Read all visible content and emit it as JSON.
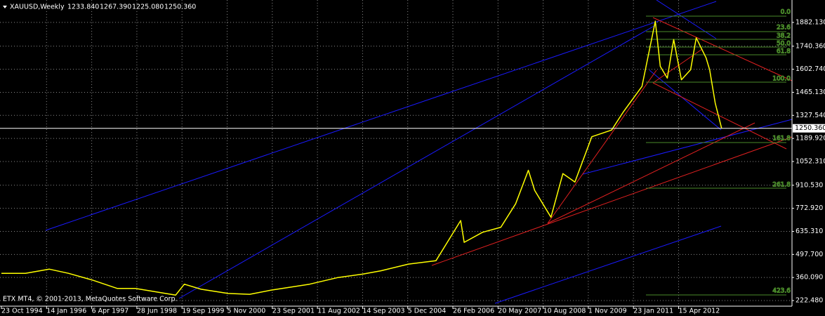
{
  "chart_data": {
    "type": "line",
    "title": "XAUUSD,Weekly",
    "ohlc_labels": [
      "1233.840",
      "1267.390",
      "1225.080",
      "1250.360"
    ],
    "watermark": "ETX MT4, © 2001-2013, MetaQuotes Software Corp.",
    "last_price": {
      "value": 1250.36,
      "label": "1250.360"
    },
    "fibo_labels": [
      "0.0",
      "23.6",
      "38.2",
      "50.0",
      "61.8",
      "100.0",
      "161.8",
      "261.8",
      "423.6"
    ],
    "color": "#ffff00",
    "grid": true,
    "x": [
      "1994-10-23",
      "1995-06-18",
      "1996-02-11",
      "1996-08-18",
      "1997-04-13",
      "1997-12-14",
      "1998-06-14",
      "1999-07-18",
      "1999-10-10",
      "2000-03-12",
      "2000-11-12",
      "2001-04-15",
      "2001-09-16",
      "2002-06-16",
      "2003-02-09",
      "2003-09-14",
      "2004-03-14",
      "2004-12-12",
      "2005-09-11",
      "2006-05-14",
      "2006-06-18",
      "2006-12-17",
      "2007-06-17",
      "2007-11-11",
      "2008-03-16",
      "2008-05-18",
      "2008-10-26",
      "2009-02-22",
      "2009-06-21",
      "2009-12-06",
      "2010-06-20",
      "2010-10-17",
      "2011-04-17",
      "2011-08-28",
      "2011-10-16",
      "2011-12-25",
      "2012-02-26",
      "2012-05-13",
      "2012-08-12",
      "2012-10-07",
      "2013-01-13",
      "2013-02-17",
      "2013-04-14",
      "2013-06-16"
    ],
    "values": [
      385,
      385,
      410,
      385,
      345,
      295,
      295,
      255,
      320,
      290,
      265,
      260,
      285,
      320,
      360,
      380,
      400,
      440,
      460,
      700,
      570,
      630,
      660,
      800,
      1000,
      880,
      720,
      980,
      930,
      1200,
      1240,
      1350,
      1500,
      1890,
      1620,
      1550,
      1780,
      1540,
      1600,
      1790,
      1670,
      1600,
      1400,
      1250
    ],
    "ylim": [
      189,
      1995
    ],
    "yticks": [
      {
        "value": 222.48,
        "label": "222.480"
      },
      {
        "value": 360.09,
        "label": "360.090"
      },
      {
        "value": 497.7,
        "label": "497.700"
      },
      {
        "value": 635.31,
        "label": "635.310"
      },
      {
        "value": 772.92,
        "label": "772.920"
      },
      {
        "value": 910.53,
        "label": "910.530"
      },
      {
        "value": 1052.31,
        "label": "1052.310"
      },
      {
        "value": 1189.92,
        "label": "1189.920"
      },
      {
        "value": 1327.54,
        "label": "1327.540"
      },
      {
        "value": 1465.13,
        "label": "1465.130"
      },
      {
        "value": 1602.74,
        "label": "1602.740"
      },
      {
        "value": 1740.36,
        "label": "1740.360"
      },
      {
        "value": 1882.13,
        "label": "1882.130"
      }
    ],
    "xticks": [
      {
        "value": "1994-10-23",
        "label": "23 Oct 1994"
      },
      {
        "value": "1996-01-14",
        "label": "14 Jan 1996"
      },
      {
        "value": "1997-04-06",
        "label": "6 Apr 1997"
      },
      {
        "value": "1998-06-28",
        "label": "28 Jun 1998"
      },
      {
        "value": "1999-09-19",
        "label": "19 Sep 1999"
      },
      {
        "value": "2000-11-05",
        "label": "5 Nov 2000"
      },
      {
        "value": "2001-09-23",
        "label": "23 Sep 2001"
      },
      {
        "value": "2002-08-11",
        "label": "11 Aug 2002"
      },
      {
        "value": "2003-09-14",
        "label": "14 Sep 2003"
      },
      {
        "value": "2004-12-05",
        "label": "5 Dec 2004"
      },
      {
        "value": "2006-02-26",
        "label": "26 Feb 2006"
      },
      {
        "value": "2007-05-20",
        "label": "20 May 2007"
      },
      {
        "value": "2008-08-10",
        "label": "10 Aug 2008"
      },
      {
        "value": "2009-11-01",
        "label": "1 Nov 2009"
      },
      {
        "value": "2011-01-23",
        "label": "23 Jan 2011"
      },
      {
        "value": "2012-04-15",
        "label": "15 Apr 2012"
      }
    ]
  }
}
